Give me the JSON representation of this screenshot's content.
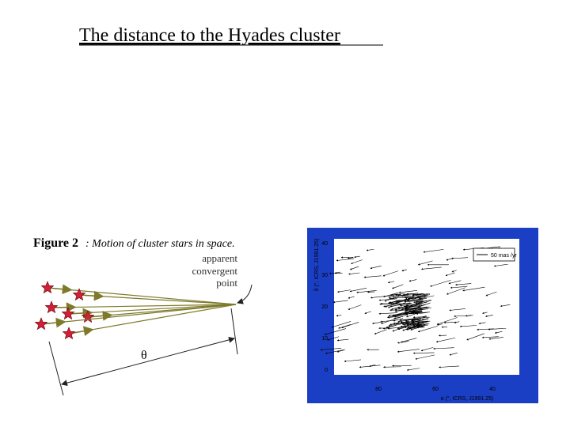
{
  "header": {
    "title": "The distance to the Hyades cluster"
  },
  "left_figure": {
    "caption_label": "Figure 2",
    "caption_text": ": Motion of cluster stars in space.",
    "point_label": [
      "apparent",
      "convergent",
      "point"
    ],
    "angle_label": "θ"
  },
  "right_figure": {
    "y_axis_label": "δ (°, ICRS, J1991.25)",
    "x_axis_label": "α (°, ICRS, J1991.25)",
    "legend": "50 mas /yr",
    "y_tick_labels": [
      "40",
      "30",
      "20",
      "10",
      "0"
    ],
    "x_tick_labels": [
      "80",
      "60",
      "40"
    ]
  }
}
